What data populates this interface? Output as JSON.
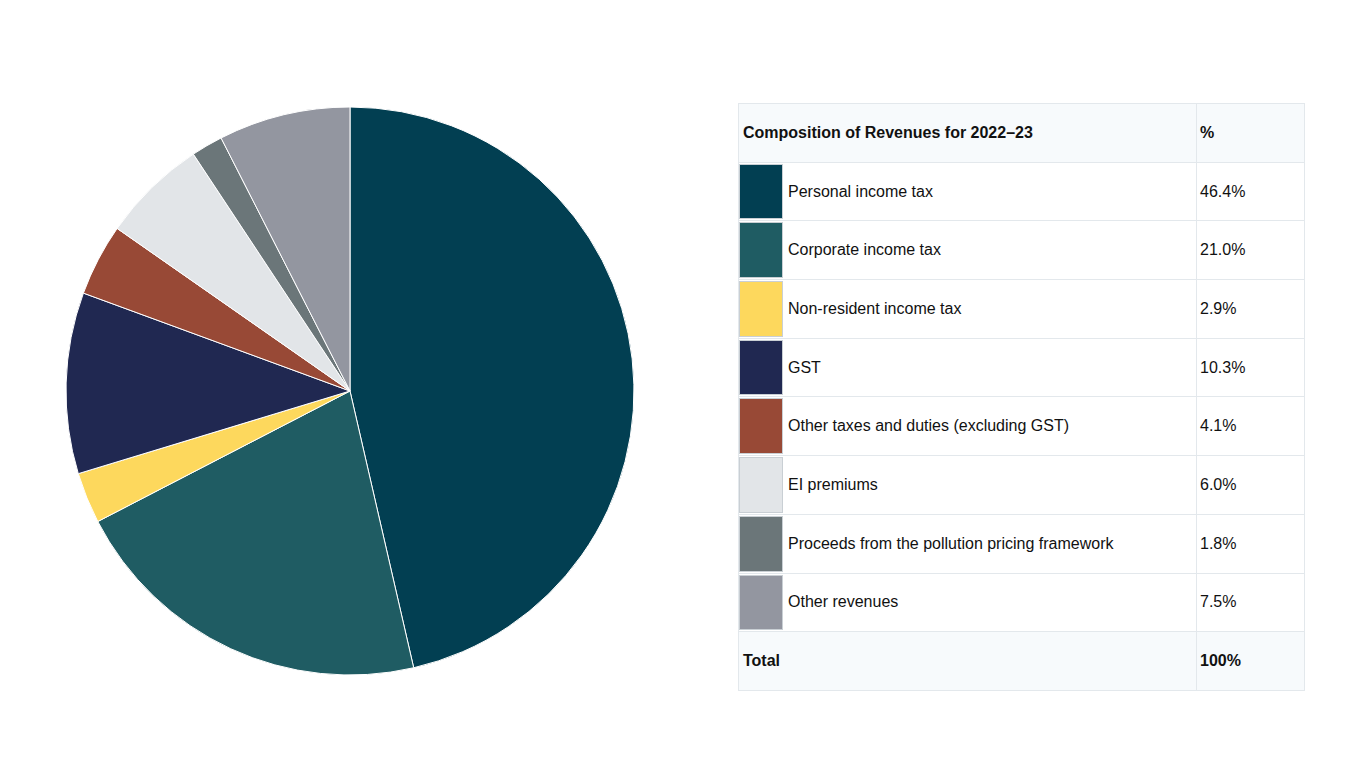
{
  "chart_data": {
    "type": "pie",
    "title": "Composition of Revenues for 2022–23",
    "value_header": "%",
    "categories": [
      "Personal income tax",
      "Corporate income tax",
      "Non-resident income tax",
      "GST",
      "Other taxes and duties (excluding GST)",
      "EI premiums",
      "Proceeds from the pollution pricing framework",
      "Other revenues"
    ],
    "values": [
      46.4,
      21.0,
      2.9,
      10.3,
      4.1,
      6.0,
      1.8,
      7.5
    ],
    "value_labels": [
      "46.4%",
      "21.0%",
      "2.9%",
      "10.3%",
      "4.1%",
      "6.0%",
      "1.8%",
      "7.5%"
    ],
    "colors": [
      "#023f52",
      "#1f5c63",
      "#fdd85d",
      "#202851",
      "#984936",
      "#e2e5e8",
      "#6b7679",
      "#9396a0"
    ],
    "total": {
      "label": "Total",
      "value_label": "100%"
    }
  }
}
